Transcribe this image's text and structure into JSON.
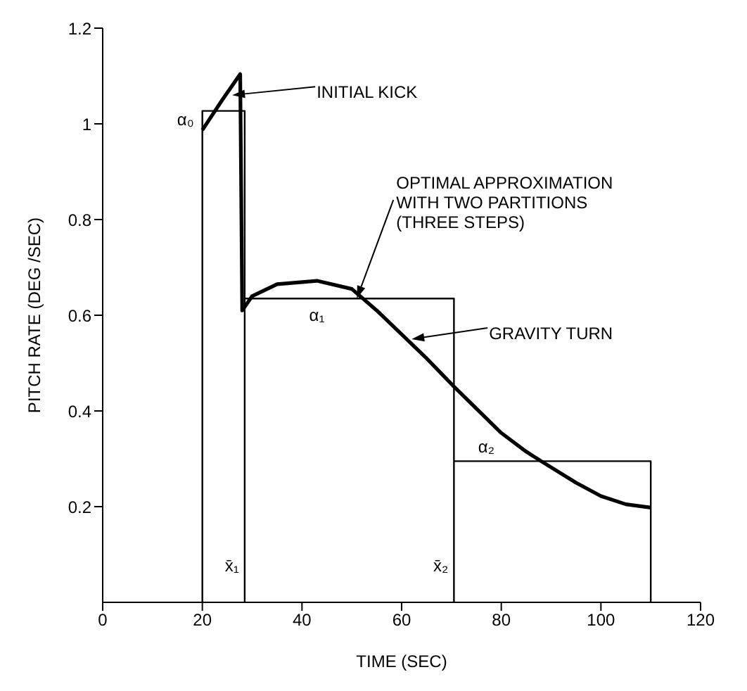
{
  "chart_data": {
    "type": "line",
    "xlabel": "TIME (SEC)",
    "ylabel": "PITCH RATE (DEG /SEC)",
    "xlim": [
      0,
      120
    ],
    "xticks": [
      0,
      20,
      40,
      60,
      80,
      100,
      120
    ],
    "ylim": [
      0,
      1.2
    ],
    "yticks": [
      0.2,
      0.4,
      0.6,
      0.8,
      1.0,
      1.2
    ],
    "marker": "none",
    "series": [
      {
        "color": "#000000",
        "x": [
          20,
          20,
          28.5,
          28.5,
          28.5,
          70.5,
          70.5,
          70.5,
          110,
          110
        ],
        "values": [
          0,
          1.027,
          1.027,
          0,
          0.635,
          0.635,
          0,
          0.295,
          0.295,
          0
        ]
      },
      {
        "color": "#000000",
        "x": [
          20,
          24,
          27.6,
          28,
          30,
          35,
          43,
          50,
          55,
          60,
          65,
          70.5,
          75,
          80,
          85,
          88,
          95,
          100,
          105,
          110
        ],
        "values": [
          0.987,
          1.05,
          1.104,
          0.61,
          0.64,
          0.665,
          0.672,
          0.655,
          0.61,
          0.56,
          0.51,
          0.451,
          0.405,
          0.354,
          0.315,
          0.295,
          0.25,
          0.222,
          0.205,
          0.198
        ]
      }
    ],
    "annotations": [
      {
        "text": "α₀",
        "x": 20,
        "y": 1.027
      },
      {
        "text": "α₁",
        "x": 43,
        "y": 0.635
      },
      {
        "text": "α₂",
        "x": 77,
        "y": 0.295
      },
      {
        "text": "x̄₁",
        "x": 28.5,
        "y": 0
      },
      {
        "text": "x̄₂",
        "x": 70.5,
        "y": 0
      },
      {
        "text": "INITIAL KICK",
        "x": 26,
        "y": 1.06
      },
      {
        "text": "OPTIMAL APPROXIMATION\nWITH TWO PARTITIONS\n(THREE STEPS)",
        "x": 51,
        "y": 0.635
      },
      {
        "text": "GRAVITY TURN",
        "x": 62,
        "y": 0.55
      }
    ]
  }
}
